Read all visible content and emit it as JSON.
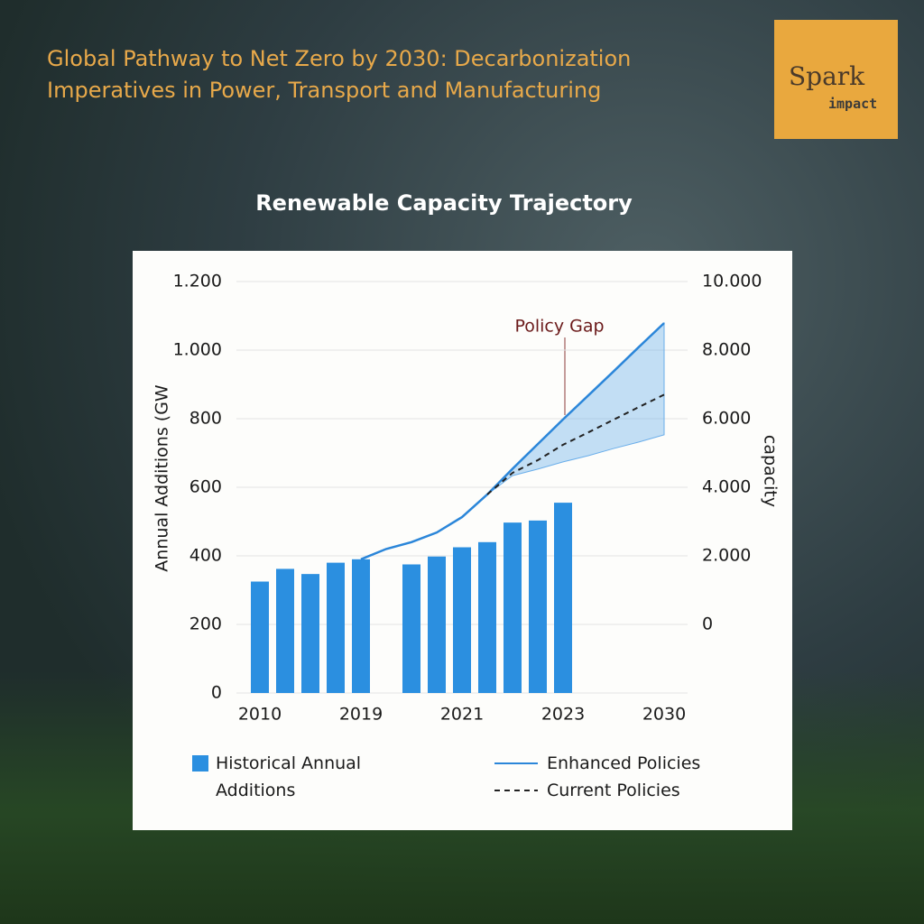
{
  "header": {
    "title": "Global Pathway to Net Zero by 2030: Decarbonization Imperatives in Power, Transport and Manufacturing",
    "brand": [
      "Spark",
      "impact"
    ]
  },
  "chart_data": {
    "type": "bar",
    "title": "Renewable Capacity Trajectory",
    "y_label": "Annual Additions (GW",
    "y2_label": "capacity",
    "annotation": "Policy Gap",
    "categories": [
      "2010",
      null,
      null,
      null,
      "2019",
      null,
      null,
      null,
      "2021",
      null,
      null,
      null,
      "2023",
      null,
      null,
      null,
      "2030"
    ],
    "ylim": [
      0,
      1200
    ],
    "yticks": [
      0,
      200,
      400,
      600,
      800,
      {
        "value": 1000,
        "label": "1.000"
      },
      {
        "value": 1200,
        "label": "1.200"
      }
    ],
    "y2lim": [
      -2000,
      10000
    ],
    "y2ticks": [
      0,
      {
        "value": 2000,
        "label": "2.000"
      },
      {
        "value": 4000,
        "label": "4.000"
      },
      {
        "value": 6000,
        "label": "6.000"
      },
      {
        "value": 8000,
        "label": "8.000"
      },
      {
        "value": 10000,
        "label": "10.000"
      }
    ],
    "grid": true,
    "series": [
      {
        "name": "Historical Annual Additions",
        "type": "bar",
        "color": "#2b8fe0",
        "values": [
          325,
          362,
          347,
          380,
          390,
          null,
          375,
          398,
          425,
          440,
          497,
          503,
          555,
          null,
          null,
          null,
          null
        ]
      },
      {
        "name": "Enhanced Policies",
        "type": "line",
        "axis": "y2",
        "color": "#2b86d9",
        "values": [
          null,
          null,
          null,
          null,
          1900,
          2200,
          2400,
          2680,
          3130,
          3790,
          4540,
          5260,
          5980,
          6680,
          7380,
          8090,
          8790
        ]
      },
      {
        "name": "Current Policies",
        "type": "line",
        "axis": "y2",
        "color": "#222222",
        "dashed": true,
        "values": [
          null,
          null,
          null,
          null,
          null,
          null,
          null,
          null,
          null,
          3790,
          4420,
          4790,
          5240,
          5600,
          5970,
          6340,
          6700
        ]
      }
    ],
    "range_band": {
      "axis": "y2",
      "color": "#6aaeea",
      "values": [
        null,
        null,
        null,
        null,
        null,
        null,
        null,
        null,
        null,
        3790,
        4340,
        4530,
        4740,
        4920,
        5130,
        5320,
        5530
      ]
    }
  }
}
